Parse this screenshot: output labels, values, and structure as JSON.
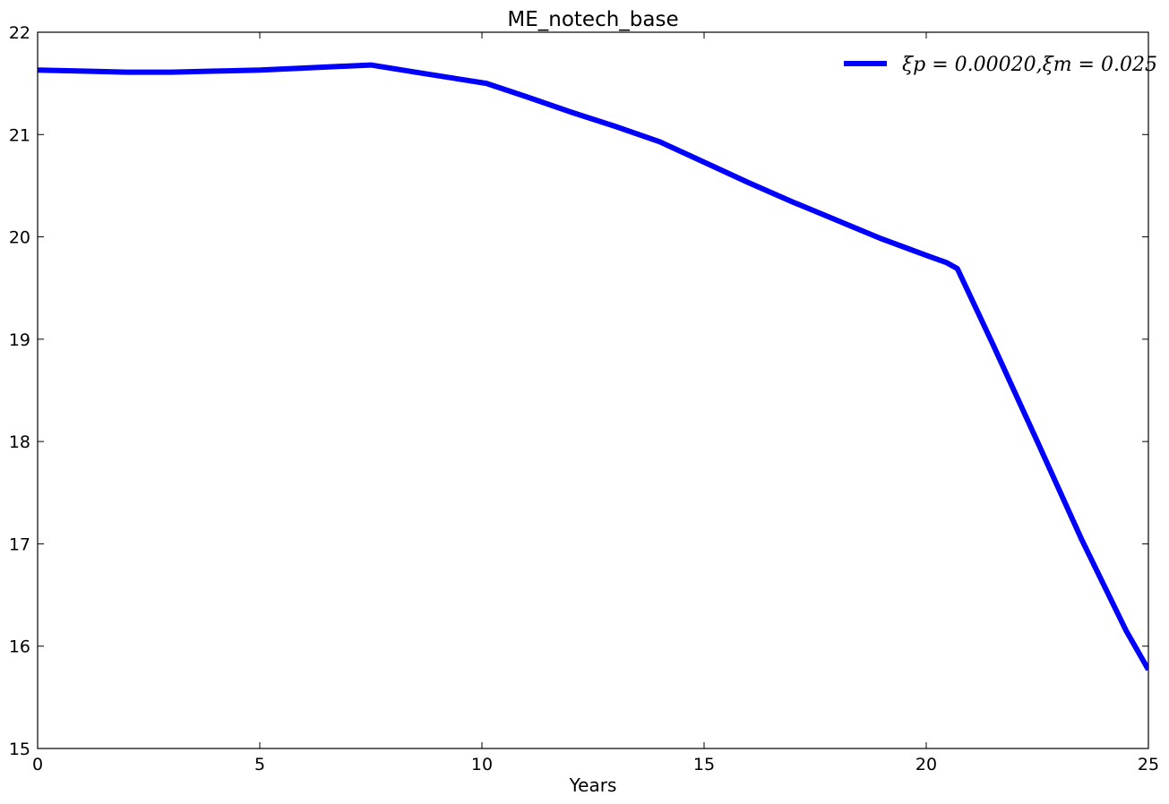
{
  "chart_data": {
    "type": "line",
    "title": "ME_notech_base",
    "xlabel": "Years",
    "ylabel": "",
    "xlim": [
      0,
      25
    ],
    "ylim": [
      15,
      22
    ],
    "xticks": [
      0,
      5,
      10,
      15,
      20,
      25
    ],
    "yticks": [
      15,
      16,
      17,
      18,
      19,
      20,
      21,
      22
    ],
    "grid": false,
    "legend_position": "top-right",
    "series": [
      {
        "name": "ξp = 0.00020,ξm = 0.025",
        "color": "#0000ff",
        "x": [
          0,
          1,
          2,
          3,
          4,
          5,
          6,
          7,
          7.5,
          8.5,
          10.1,
          11,
          12,
          13,
          14,
          15,
          16,
          17,
          18,
          19,
          20,
          20.45,
          20.7,
          21.5,
          22.5,
          23.5,
          24.5,
          25
        ],
        "y": [
          21.63,
          21.62,
          21.61,
          21.61,
          21.62,
          21.63,
          21.65,
          21.67,
          21.68,
          21.61,
          21.5,
          21.37,
          21.22,
          21.08,
          20.93,
          20.73,
          20.53,
          20.34,
          20.16,
          19.98,
          19.82,
          19.75,
          19.69,
          18.95,
          18.0,
          17.04,
          16.15,
          15.77
        ]
      }
    ]
  }
}
